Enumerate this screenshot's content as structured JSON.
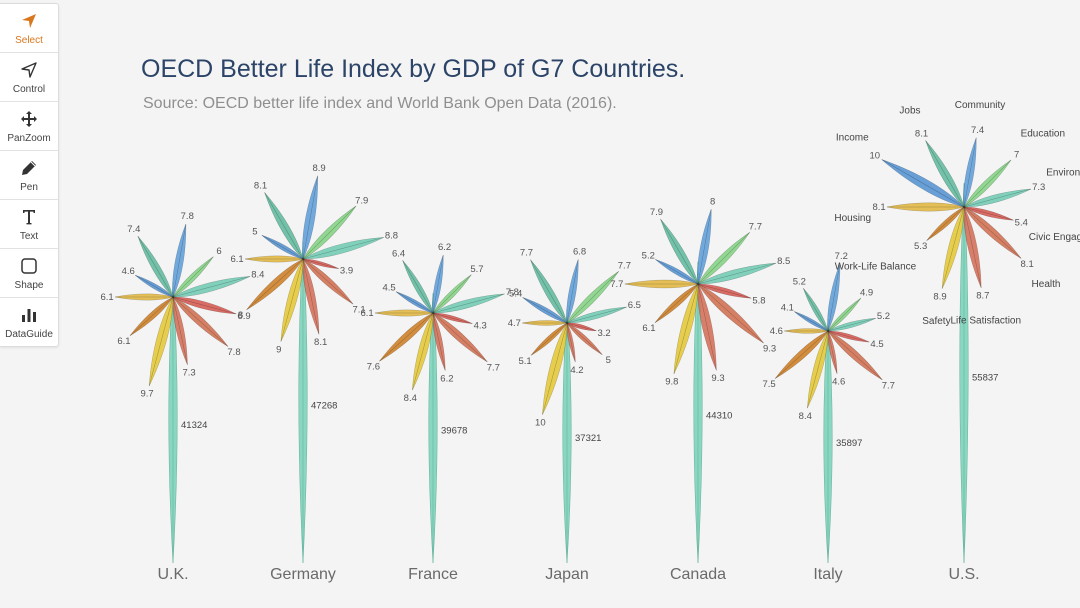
{
  "toolbar": {
    "tools": [
      {
        "label": "Select",
        "icon": "cursor-arrow-icon",
        "active": true
      },
      {
        "label": "Control",
        "icon": "pointer-outline-icon",
        "active": false
      },
      {
        "label": "PanZoom",
        "icon": "move-arrows-icon",
        "active": false
      },
      {
        "label": "Pen",
        "icon": "pen-icon",
        "active": false
      },
      {
        "label": "Text",
        "icon": "text-t-icon",
        "active": false
      },
      {
        "label": "Shape",
        "icon": "rounded-square-icon",
        "active": false
      },
      {
        "label": "DataGuide",
        "icon": "bar-chart-icon",
        "active": false
      }
    ],
    "accent_color": "#d9771e"
  },
  "chart_data": {
    "type": "flower",
    "title": "OECD Better Life Index by GDP of G7 Countries.",
    "subtitle": "Source: OECD better life index and World Bank Open Data (2016).",
    "indicators": [
      "Community",
      "Education",
      "Environment",
      "Civic Engagement",
      "Health",
      "Life Satisfaction",
      "Safety",
      "Work-Life Balance",
      "Housing",
      "Income",
      "Jobs"
    ],
    "colors": [
      "#5a9bd8",
      "#7fd07f",
      "#6cc9b0",
      "#d4534b",
      "#cf6a4a",
      "#d26a52",
      "#e3c52f",
      "#cc7a1f",
      "#e0b43a",
      "#4f8fd0",
      "#5bb79a"
    ],
    "stem_color": "#7fd4bc",
    "countries": [
      {
        "name": "U.K.",
        "gdp": 41324,
        "values": [
          7.8,
          6,
          8.4,
          6.9,
          7.8,
          7.3,
          9.7,
          6.1,
          6.1,
          4.6,
          7.4
        ]
      },
      {
        "name": "Germany",
        "gdp": 47268,
        "values": [
          8.9,
          7.9,
          8.8,
          3.9,
          7.1,
          8.1,
          9,
          8,
          6.1,
          5,
          8.1
        ]
      },
      {
        "name": "France",
        "gdp": 39678,
        "values": [
          6.2,
          5.7,
          7.8,
          4.3,
          7.7,
          6.2,
          8.4,
          7.6,
          6.1,
          4.5,
          6.4
        ]
      },
      {
        "name": "Japan",
        "gdp": 37321,
        "values": [
          6.8,
          7.7,
          6.5,
          3.2,
          5,
          4.2,
          10,
          5.1,
          4.7,
          5.4,
          7.7
        ]
      },
      {
        "name": "Canada",
        "gdp": 44310,
        "values": [
          8,
          7.7,
          8.5,
          5.8,
          9.3,
          9.3,
          9.8,
          6.1,
          7.7,
          5.2,
          7.9
        ]
      },
      {
        "name": "Italy",
        "gdp": 35897,
        "values": [
          7.2,
          4.9,
          5.2,
          4.5,
          7.7,
          4.6,
          8.4,
          7.5,
          4.6,
          4.1,
          5.2
        ]
      },
      {
        "name": "U.S.",
        "gdp": 55837,
        "values": [
          7.4,
          7,
          7.3,
          5.4,
          8.1,
          8.7,
          8.9,
          5.3,
          8.1,
          10,
          8.1
        ]
      }
    ]
  }
}
